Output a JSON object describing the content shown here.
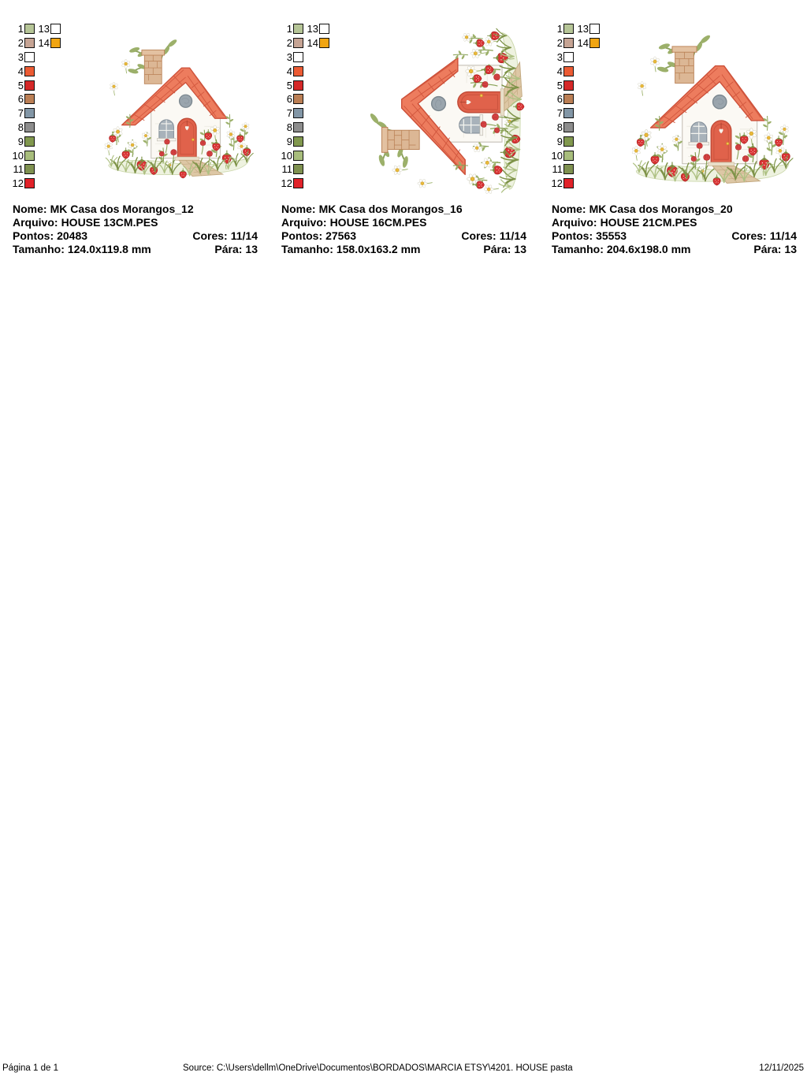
{
  "field_labels": {
    "nome": "Nome:",
    "arquivo": "Arquivo:",
    "pontos": "Pontos:",
    "cores": "Cores:",
    "tamanho": "Tamanho:",
    "para": "Pára:"
  },
  "palette": {
    "left_entries": [
      {
        "num": "1",
        "color": "#b6c597"
      },
      {
        "num": "2",
        "color": "#c6a494"
      },
      {
        "num": "3",
        "color": "#ffffff"
      },
      {
        "num": "4",
        "color": "#ec5b33"
      },
      {
        "num": "5",
        "color": "#d52828"
      },
      {
        "num": "6",
        "color": "#bb7f55"
      },
      {
        "num": "7",
        "color": "#8296a6"
      },
      {
        "num": "8",
        "color": "#8d8d8d"
      },
      {
        "num": "9",
        "color": "#81984e"
      },
      {
        "num": "10",
        "color": "#a8bd7c"
      },
      {
        "num": "11",
        "color": "#7f9150"
      },
      {
        "num": "12",
        "color": "#e12229"
      }
    ],
    "right_entries": [
      {
        "num": "13",
        "color": "#ffffff"
      },
      {
        "num": "14",
        "color": "#f0a513"
      }
    ]
  },
  "designs": [
    {
      "name": "MK Casa dos Morangos_12",
      "file": "HOUSE 13CM.PES",
      "pontos": "20483",
      "cores": "11/14",
      "tamanho": "124.0x119.8 mm",
      "para": "13"
    },
    {
      "name": "MK Casa dos Morangos_16",
      "file": "HOUSE 16CM.PES",
      "pontos": "27563",
      "cores": "11/14",
      "tamanho": "158.0x163.2 mm",
      "para": "13"
    },
    {
      "name": "MK Casa dos Morangos_20",
      "file": "HOUSE 21CM.PES",
      "pontos": "35553",
      "cores": "11/14",
      "tamanho": "204.6x198.0 mm",
      "para": "13"
    }
  ],
  "footer": {
    "page": "Página 1 de 1",
    "source_label": "Source:",
    "source_path": "C:\\Users\\dellm\\OneDrive\\Documentos\\BORDADOS\\MARCIA ETSY\\4201. HOUSE pasta",
    "date": "12/11/2025"
  }
}
